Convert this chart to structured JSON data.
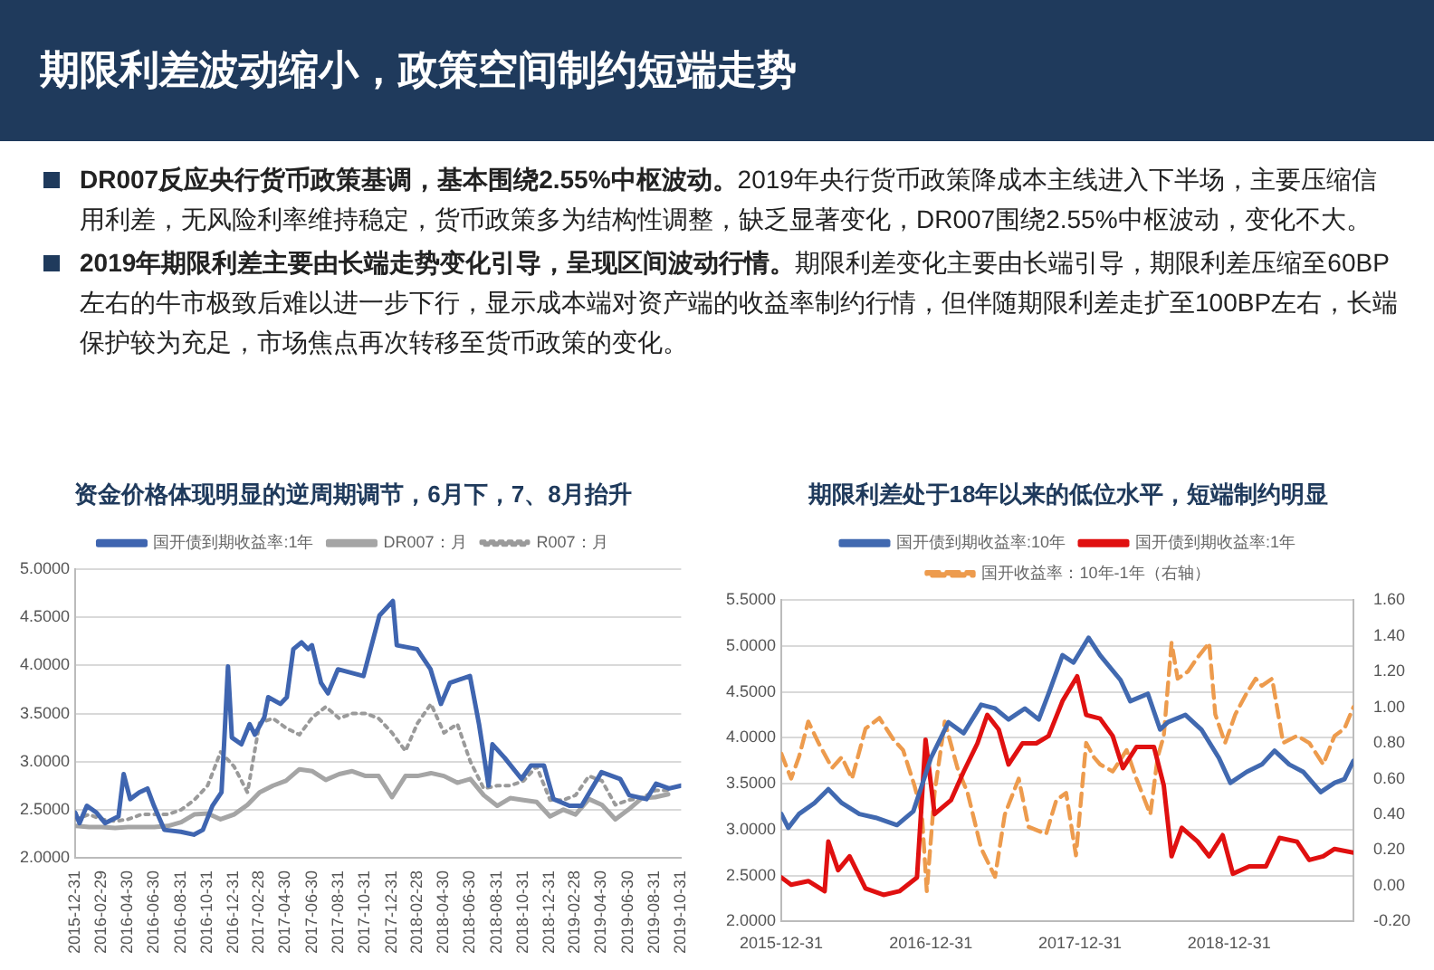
{
  "chart_data": [
    {
      "type": "line",
      "title": "资金价格体现明显的逆周期调节，6月下，7、8月抬升",
      "annotations": [
        "期限利差波动缩小，政策空间制约短端走势",
        "DR007反应央行货币政策基调，基本围绕2.55%中枢波动。",
        "2019年央行货币政策降成本主线进入下半场，主要压缩信用利差，无风险利率维持稳定，货币政策多为结构性调整，缺乏显著变化，DR007围绕2.55%中枢波动，变化不大。",
        "2019年期限利差主要由长端走势变化引导，呈现区间波动行情。",
        "期限利差变化主要由长端引导，期限利差压缩至60BP左右的牛市极致后难以进一步下行，显示成本端对资产端的收益率制约行情，但伴随期限利差走扩至100BP左右，长端保护较为充足，市场焦点再次转移至货币政策的变化。"
      ],
      "xlim": [
        "2015-12-31",
        "2019-10-31"
      ],
      "xticks": [
        "2015-12-31",
        "2016-02-29",
        "2016-04-30",
        "2016-06-30",
        "2016-08-31",
        "2016-10-31",
        "2016-12-31",
        "2017-02-28",
        "2017-04-30",
        "2017-06-30",
        "2017-08-31",
        "2017-10-31",
        "2017-12-31",
        "2018-02-28",
        "2018-04-30",
        "2018-06-30",
        "2018-08-31",
        "2018-10-31",
        "2018-12-31",
        "2019-02-28",
        "2019-04-30",
        "2019-06-30",
        "2019-08-31",
        "2019-10-31"
      ],
      "ylim": [
        2,
        5
      ],
      "yticks": [
        {
          "value": 2,
          "label": "2.0000"
        },
        {
          "value": 2.5,
          "label": "2.5000"
        },
        {
          "value": 3,
          "label": "3.0000"
        },
        {
          "value": 3.5,
          "label": "3.5000"
        },
        {
          "value": 4,
          "label": "4.0000"
        },
        {
          "value": 4.5,
          "label": "4.5000"
        },
        {
          "value": 5,
          "label": "5.0000"
        }
      ],
      "grid": "y",
      "legend": "top",
      "marker": "none",
      "series": [
        {
          "name": "国开债到期收益率:1年",
          "color": "#3f65b0",
          "line_style": "solid",
          "x": [
            "2015-12-31",
            "2016-01-10",
            "2016-01-27",
            "2016-02-18",
            "2016-03-09",
            "2016-04-09",
            "2016-04-21",
            "2016-05-06",
            "2016-05-27",
            "2016-06-15",
            "2016-06-30",
            "2016-07-24",
            "2016-08-31",
            "2016-09-30",
            "2016-10-21",
            "2016-11-12",
            "2016-12-03",
            "2016-12-09",
            "2016-12-18",
            "2016-12-27",
            "2017-01-18",
            "2017-02-06",
            "2017-02-18",
            "2017-03-12",
            "2017-03-21",
            "2017-04-18",
            "2017-05-03",
            "2017-05-18",
            "2017-06-06",
            "2017-06-21",
            "2017-06-30",
            "2017-07-21",
            "2017-08-06",
            "2017-08-29",
            "2017-10-27",
            "2017-12-03",
            "2018-01-03",
            "2018-01-12",
            "2018-02-28",
            "2018-03-31",
            "2018-04-24",
            "2018-05-15",
            "2018-06-30",
            "2018-07-21",
            "2018-08-12",
            "2018-08-21",
            "2018-09-18",
            "2018-10-27",
            "2018-11-18",
            "2018-12-18",
            "2019-01-09",
            "2019-02-15",
            "2019-03-15",
            "2019-04-30",
            "2019-06-12",
            "2019-07-03",
            "2019-08-12",
            "2019-09-03",
            "2019-10-03",
            "2019-10-31"
          ],
          "values": [
            2.47,
            2.36,
            2.54,
            2.47,
            2.36,
            2.43,
            2.87,
            2.61,
            2.68,
            2.72,
            2.54,
            2.29,
            2.27,
            2.24,
            2.29,
            2.54,
            2.68,
            3.18,
            3.99,
            3.25,
            3.18,
            3.39,
            3.28,
            3.46,
            3.67,
            3.6,
            3.67,
            4.17,
            4.24,
            4.17,
            4.21,
            3.82,
            3.71,
            3.96,
            3.89,
            4.52,
            4.67,
            4.21,
            4.17,
            3.96,
            3.6,
            3.82,
            3.89,
            3.39,
            2.75,
            3.18,
            3.04,
            2.82,
            2.96,
            2.96,
            2.61,
            2.54,
            2.54,
            2.89,
            2.82,
            2.65,
            2.61,
            2.77,
            2.72,
            2.75
          ]
        },
        {
          "name": "DR007：月",
          "color": "#a5a5a5",
          "line_style": "solid",
          "x": [
            "2016-01",
            "2016-02",
            "2016-03",
            "2016-04",
            "2016-05",
            "2016-06",
            "2016-07",
            "2016-08",
            "2016-09",
            "2016-10",
            "2016-11",
            "2016-12",
            "2017-01",
            "2017-02",
            "2017-03",
            "2017-04",
            "2017-05",
            "2017-06",
            "2017-07",
            "2017-08",
            "2017-09",
            "2017-10",
            "2017-11",
            "2017-12",
            "2018-01",
            "2018-02",
            "2018-03",
            "2018-04",
            "2018-05",
            "2018-06",
            "2018-07",
            "2018-08",
            "2018-09",
            "2018-10",
            "2018-11",
            "2018-12",
            "2019-01",
            "2019-02",
            "2019-03",
            "2019-04",
            "2019-05",
            "2019-06",
            "2019-07",
            "2019-08",
            "2019-09",
            "2019-10"
          ],
          "values": [
            2.33,
            2.32,
            2.32,
            2.31,
            2.32,
            2.32,
            2.32,
            2.33,
            2.37,
            2.45,
            2.46,
            2.4,
            2.45,
            2.55,
            2.68,
            2.75,
            2.8,
            2.92,
            2.9,
            2.81,
            2.87,
            2.9,
            2.85,
            2.85,
            2.63,
            2.85,
            2.85,
            2.88,
            2.85,
            2.78,
            2.82,
            2.65,
            2.54,
            2.62,
            2.6,
            2.58,
            2.43,
            2.5,
            2.45,
            2.61,
            2.55,
            2.4,
            2.5,
            2.62,
            2.63,
            2.66
          ]
        },
        {
          "name": "R007：月",
          "color": "#9a9a9a",
          "line_style": "dotted",
          "x": [
            "2016-01",
            "2016-02",
            "2016-03",
            "2016-04",
            "2016-05",
            "2016-06",
            "2016-07",
            "2016-08",
            "2016-09",
            "2016-10",
            "2016-11",
            "2016-12",
            "2017-01",
            "2017-02",
            "2017-03",
            "2017-04",
            "2017-05",
            "2017-06",
            "2017-07",
            "2017-08",
            "2017-09",
            "2017-10",
            "2017-11",
            "2017-12",
            "2018-01",
            "2018-02",
            "2018-03",
            "2018-04",
            "2018-05",
            "2018-06",
            "2018-07",
            "2018-08",
            "2018-09",
            "2018-10",
            "2018-11",
            "2018-12",
            "2019-01",
            "2019-02",
            "2019-03",
            "2019-04",
            "2019-05",
            "2019-06",
            "2019-07",
            "2019-08",
            "2019-09",
            "2019-10"
          ],
          "values": [
            2.4,
            2.45,
            2.4,
            2.38,
            2.4,
            2.45,
            2.45,
            2.45,
            2.5,
            2.6,
            2.75,
            3.1,
            2.95,
            2.68,
            3.4,
            3.45,
            3.35,
            3.28,
            3.46,
            3.57,
            3.45,
            3.5,
            3.5,
            3.45,
            3.3,
            3.11,
            3.4,
            3.6,
            3.3,
            3.39,
            3.0,
            2.72,
            2.75,
            2.75,
            2.8,
            2.95,
            2.6,
            2.6,
            2.65,
            2.85,
            2.8,
            2.55,
            2.6,
            2.62,
            2.7,
            2.7
          ]
        }
      ]
    },
    {
      "type": "line",
      "title": "期限利差处于18年以来的低位水平，短端制约明显",
      "xlim": [
        "2015-12-31",
        "2019-10-31"
      ],
      "xticks": [
        "2015-12-31",
        "2016-12-31",
        "2017-12-31",
        "2018-12-31"
      ],
      "ylim": [
        2,
        5.5
      ],
      "yticks": [
        {
          "value": 2,
          "label": "2.0000"
        },
        {
          "value": 2.5,
          "label": "2.5000"
        },
        {
          "value": 3,
          "label": "3.0000"
        },
        {
          "value": 3.5,
          "label": "3.5000"
        },
        {
          "value": 4,
          "label": "4.0000"
        },
        {
          "value": 4.5,
          "label": "4.5000"
        },
        {
          "value": 5,
          "label": "5.0000"
        },
        {
          "value": 5.5,
          "label": "5.5000"
        }
      ],
      "y2lim": [
        -0.2,
        1.6
      ],
      "y2ticks": [
        {
          "value": -0.2,
          "label": "-0.20"
        },
        {
          "value": 0,
          "label": "0.00"
        },
        {
          "value": 0.2,
          "label": "0.20"
        },
        {
          "value": 0.4,
          "label": "0.40"
        },
        {
          "value": 0.6,
          "label": "0.60"
        },
        {
          "value": 0.8,
          "label": "0.80"
        },
        {
          "value": 1,
          "label": "1.00"
        },
        {
          "value": 1.2,
          "label": "1.20"
        },
        {
          "value": 1.4,
          "label": "1.40"
        },
        {
          "value": 1.6,
          "label": "1.60"
        }
      ],
      "grid": "y",
      "legend": "top",
      "marker": "none",
      "series": [
        {
          "name": "国开债到期收益率:10年",
          "color": "#4169b0",
          "line_style": "solid",
          "x": [
            "2015-12-31",
            "2016-01-17",
            "2016-02-12",
            "2016-03-21",
            "2016-04-24",
            "2016-05-27",
            "2016-07-09",
            "2016-08-18",
            "2016-10-09",
            "2016-11-18",
            "2016-12-31",
            "2017-02-12",
            "2017-03-21",
            "2017-05-03",
            "2017-06-06",
            "2017-07-09",
            "2017-08-18",
            "2017-09-21",
            "2017-10-15",
            "2017-11-18",
            "2017-12-15",
            "2018-01-21",
            "2018-02-18",
            "2018-04-09",
            "2018-05-03",
            "2018-06-15",
            "2018-07-15",
            "2018-08-03",
            "2018-09-15",
            "2018-10-24",
            "2018-12-06",
            "2019-01-03",
            "2019-02-12",
            "2019-03-21",
            "2019-04-21",
            "2019-05-27",
            "2019-06-30",
            "2019-08-12",
            "2019-09-15",
            "2019-10-09",
            "2019-10-31"
          ],
          "values": [
            3.17,
            3.02,
            3.17,
            3.29,
            3.44,
            3.29,
            3.17,
            3.13,
            3.05,
            3.2,
            3.78,
            4.17,
            4.05,
            4.36,
            4.32,
            4.2,
            4.32,
            4.2,
            4.48,
            4.9,
            4.82,
            5.09,
            4.9,
            4.63,
            4.4,
            4.48,
            4.09,
            4.17,
            4.25,
            4.09,
            3.78,
            3.51,
            3.63,
            3.71,
            3.86,
            3.71,
            3.63,
            3.41,
            3.51,
            3.55,
            3.75
          ]
        },
        {
          "name": "国开债到期收益率:1年",
          "color": "#e01010",
          "line_style": "solid",
          "x": [
            "2015-12-31",
            "2016-01-24",
            "2016-03-06",
            "2016-04-15",
            "2016-04-24",
            "2016-05-18",
            "2016-06-15",
            "2016-07-24",
            "2016-09-06",
            "2016-10-15",
            "2016-11-27",
            "2016-12-18",
            "2017-01-09",
            "2017-02-18",
            "2017-03-21",
            "2017-04-24",
            "2017-05-18",
            "2017-06-15",
            "2017-07-09",
            "2017-08-12",
            "2017-09-15",
            "2017-10-15",
            "2017-11-18",
            "2017-12-24",
            "2018-01-15",
            "2018-02-18",
            "2018-03-21",
            "2018-04-15",
            "2018-05-18",
            "2018-06-30",
            "2018-07-24",
            "2018-08-12",
            "2018-09-06",
            "2018-10-15",
            "2018-11-12",
            "2018-12-15",
            "2019-01-09",
            "2019-02-18",
            "2019-03-31",
            "2019-05-03",
            "2019-06-15",
            "2019-07-15",
            "2019-08-18",
            "2019-09-15",
            "2019-10-31"
          ],
          "values": [
            2.48,
            2.4,
            2.44,
            2.33,
            2.87,
            2.56,
            2.71,
            2.36,
            2.29,
            2.33,
            2.48,
            3.98,
            3.17,
            3.32,
            3.63,
            3.94,
            4.25,
            4.09,
            3.71,
            3.94,
            3.94,
            4.02,
            4.4,
            4.67,
            4.25,
            4.21,
            4.02,
            3.67,
            3.9,
            3.9,
            3.48,
            2.71,
            3.02,
            2.87,
            2.71,
            2.94,
            2.52,
            2.6,
            2.6,
            2.91,
            2.87,
            2.67,
            2.71,
            2.79,
            2.75
          ]
        },
        {
          "name": "国开收益率：10年-1年（右轴）",
          "color": "#ed9b4d",
          "line_style": "dashed",
          "axis": "y2",
          "x": [
            "2015-12-31",
            "2016-01-24",
            "2016-02-12",
            "2016-03-06",
            "2016-03-31",
            "2016-05-03",
            "2016-05-27",
            "2016-06-21",
            "2016-07-24",
            "2016-08-27",
            "2016-09-30",
            "2016-10-24",
            "2016-11-21",
            "2016-12-09",
            "2016-12-21",
            "2017-01-09",
            "2017-02-03",
            "2017-03-06",
            "2017-03-31",
            "2017-05-03",
            "2017-06-06",
            "2017-06-30",
            "2017-08-03",
            "2017-08-27",
            "2017-10-09",
            "2017-11-03",
            "2017-11-27",
            "2017-12-21",
            "2018-01-15",
            "2018-02-03",
            "2018-02-18",
            "2018-03-21",
            "2018-04-24",
            "2018-05-18",
            "2018-06-21",
            "2018-07-09",
            "2018-07-24",
            "2018-08-03",
            "2018-08-12",
            "2018-08-27",
            "2018-09-21",
            "2018-10-15",
            "2018-11-12",
            "2018-11-27",
            "2018-12-21",
            "2019-01-15",
            "2019-02-12",
            "2019-03-06",
            "2019-03-21",
            "2019-04-15",
            "2019-05-12",
            "2019-06-15",
            "2019-07-15",
            "2019-08-18",
            "2019-09-15",
            "2019-10-09",
            "2019-10-31"
          ],
          "values": [
            0.74,
            0.6,
            0.72,
            0.92,
            0.8,
            0.66,
            0.72,
            0.6,
            0.88,
            0.94,
            0.82,
            0.76,
            0.56,
            0.4,
            -0.03,
            0.52,
            0.92,
            0.66,
            0.52,
            0.21,
            0.05,
            0.4,
            0.6,
            0.33,
            0.29,
            0.48,
            0.52,
            0.17,
            0.8,
            0.72,
            0.68,
            0.64,
            0.76,
            0.6,
            0.4,
            0.72,
            0.84,
            1.12,
            1.36,
            1.16,
            1.2,
            1.28,
            1.36,
            0.96,
            0.8,
            0.96,
            1.08,
            1.16,
            1.12,
            1.16,
            0.8,
            0.84,
            0.8,
            0.68,
            0.84,
            0.88,
            1.0
          ]
        }
      ]
    }
  ]
}
